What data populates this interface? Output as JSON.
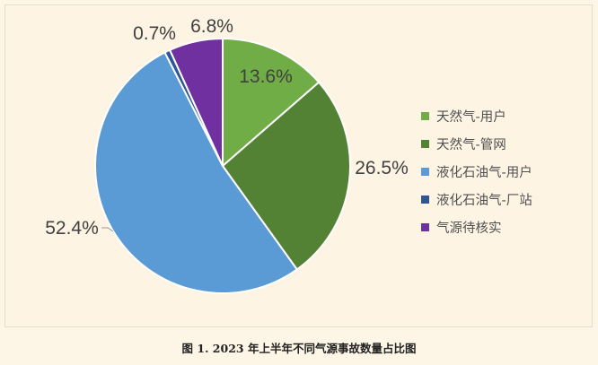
{
  "chart_data": {
    "type": "pie",
    "title": "图 1. 2023 年上半年不同气源事故数量占比图",
    "categories": [
      "天然气-用户",
      "天然气-管网",
      "液化石油气-用户",
      "液化石油气-厂站",
      "气源待核实"
    ],
    "values": [
      13.6,
      26.5,
      52.4,
      0.7,
      6.8
    ],
    "value_labels": [
      "13.6%",
      "26.5%",
      "52.4%",
      "0.7%",
      "6.8%"
    ],
    "colors": [
      "#70ad47",
      "#548235",
      "#5b9bd5",
      "#2f5597",
      "#7030a0"
    ],
    "start": "top",
    "direction": "clockwise",
    "legend": "right"
  }
}
